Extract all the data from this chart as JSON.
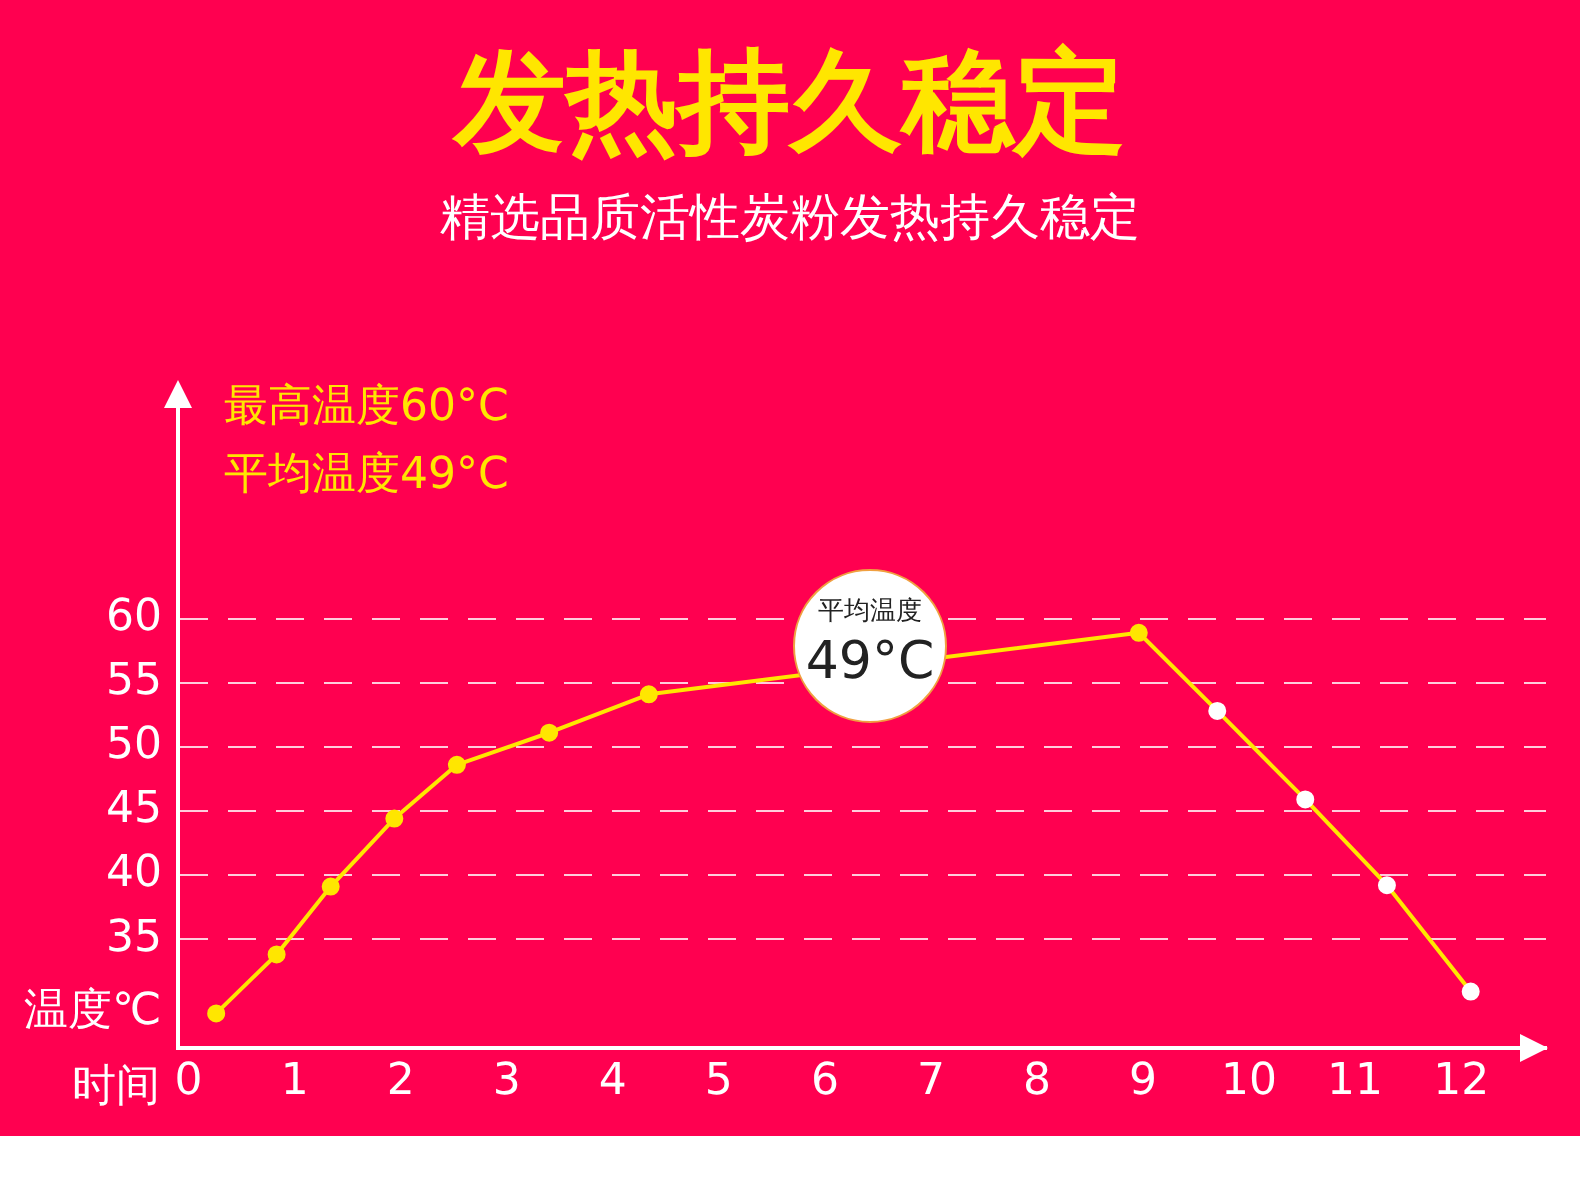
{
  "chart_data": {
    "type": "line",
    "title": "发热持久稳定",
    "subtitle": "精选品质活性炭粉发热持久稳定",
    "xlabel": "时间",
    "ylabel": "温度℃",
    "annotations": [
      "最高温度60°C",
      "平均温度49°C",
      "平均温度\n49°C"
    ],
    "xlim": [
      -0.1,
      12.8
    ],
    "xticks": [
      0,
      1,
      2,
      3,
      4,
      5,
      6,
      7,
      8,
      9,
      10,
      11,
      12
    ],
    "ylim": [
      26.5,
      78
    ],
    "yticks": [
      35,
      40,
      45,
      50,
      55,
      60
    ],
    "grid": "y",
    "legend": false,
    "marker": "circle",
    "line_style": "solid",
    "series": [
      {
        "color": "#ffe600",
        "colors": [
          "#ffe600",
          "#ffe600",
          "#ffe600",
          "#ffe600",
          "#ffe600",
          "#ffe600",
          "#ffe600",
          "#ffe600",
          "#ffffff",
          "#ffffff",
          "#ffffff",
          "#ffffff"
        ],
        "x": [
          0.26,
          0.83,
          1.34,
          1.94,
          2.53,
          3.4,
          4.34,
          8.96,
          9.7,
          10.53,
          11.3,
          12.09
        ],
        "values": [
          29.2,
          33.8,
          39.1,
          44.4,
          48.6,
          51.1,
          54.1,
          58.9,
          52.8,
          45.9,
          39.2,
          30.9
        ]
      }
    ]
  }
}
